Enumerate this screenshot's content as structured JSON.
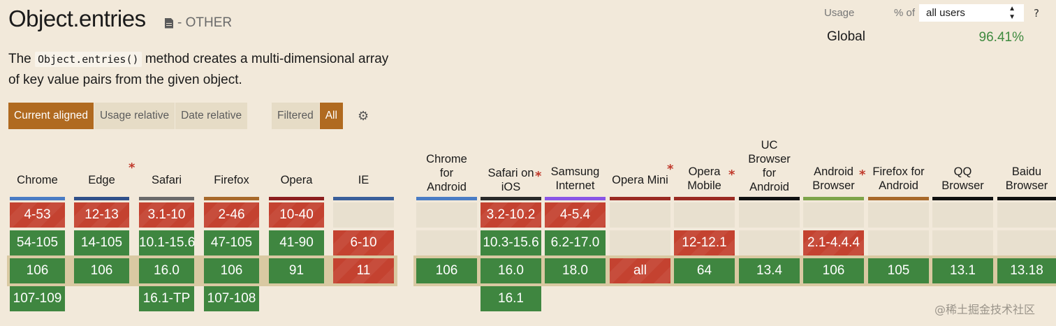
{
  "feature": {
    "title": "Object.entries",
    "category_icon": "document-icon",
    "category": "- OTHER",
    "description_prefix": "The",
    "description_code": "Object.entries()",
    "description_suffix": "method creates a multi-dimensional array of key value pairs from the given object."
  },
  "view_buttons": [
    {
      "label": "Current aligned",
      "active": true
    },
    {
      "label": "Usage relative",
      "active": false
    },
    {
      "label": "Date relative",
      "active": false
    }
  ],
  "filter_buttons": [
    {
      "label": "Filtered",
      "active": false
    },
    {
      "label": "All",
      "active": true
    }
  ],
  "settings_icon": "gear-icon",
  "usage": {
    "label": "Usage",
    "pct_of": "% of",
    "select_value": "all users",
    "help": "?",
    "global_label": "Global",
    "global_value": "96.41%"
  },
  "colors": {
    "supported": "#3f8640",
    "unsupported": "#c44230",
    "accent": "#b06a20",
    "usage_green": "#3f8a3f"
  },
  "browsers": [
    {
      "name": "Chrome",
      "star": false,
      "bar": "#4a7cc4",
      "cells": [
        {
          "v": "4-53",
          "s": "n"
        },
        {
          "v": "54-105",
          "s": "y"
        },
        {
          "v": "106",
          "s": "y"
        },
        {
          "v": "107-109",
          "s": "y"
        }
      ]
    },
    {
      "name": "Edge",
      "star": true,
      "bar": "#30508a",
      "cells": [
        {
          "v": "12-13",
          "s": "n"
        },
        {
          "v": "14-105",
          "s": "y"
        },
        {
          "v": "106",
          "s": "y"
        },
        {
          "v": "",
          "s": ""
        }
      ]
    },
    {
      "name": "Safari",
      "star": false,
      "bar": "#6a6a6a",
      "cells": [
        {
          "v": "3.1-10",
          "s": "n"
        },
        {
          "v": "10.1-15.6",
          "s": "y"
        },
        {
          "v": "16.0",
          "s": "y"
        },
        {
          "v": "16.1-TP",
          "s": "y"
        }
      ]
    },
    {
      "name": "Firefox",
      "star": false,
      "bar": "#a8692a",
      "cells": [
        {
          "v": "2-46",
          "s": "n"
        },
        {
          "v": "47-105",
          "s": "y"
        },
        {
          "v": "106",
          "s": "y"
        },
        {
          "v": "107-108",
          "s": "y"
        }
      ]
    },
    {
      "name": "Opera",
      "star": false,
      "bar": "#8c1f1f",
      "cells": [
        {
          "v": "10-40",
          "s": "n"
        },
        {
          "v": "41-90",
          "s": "y"
        },
        {
          "v": "91",
          "s": "y"
        },
        {
          "v": "",
          "s": ""
        }
      ]
    },
    {
      "name": "IE",
      "star": false,
      "bar": "#3a5f9a",
      "cells": [
        {
          "v": "",
          "s": "e"
        },
        {
          "v": "6-10",
          "s": "n"
        },
        {
          "v": "11",
          "s": "n"
        },
        {
          "v": "",
          "s": ""
        }
      ]
    },
    {
      "name": "Chrome for Android",
      "star": false,
      "bar": "#4a7cc4",
      "cells": [
        {
          "v": "",
          "s": "e"
        },
        {
          "v": "",
          "s": "e"
        },
        {
          "v": "106",
          "s": "y"
        },
        {
          "v": "",
          "s": ""
        }
      ]
    },
    {
      "name": "Safari on iOS",
      "star": true,
      "bar": "#2a2a2a",
      "cells": [
        {
          "v": "3.2-10.2",
          "s": "n"
        },
        {
          "v": "10.3-15.6",
          "s": "y"
        },
        {
          "v": "16.0",
          "s": "y"
        },
        {
          "v": "16.1",
          "s": "y"
        }
      ]
    },
    {
      "name": "Samsung Internet",
      "star": false,
      "bar": "#8a55e6",
      "cells": [
        {
          "v": "4-5.4",
          "s": "n"
        },
        {
          "v": "6.2-17.0",
          "s": "y"
        },
        {
          "v": "18.0",
          "s": "y"
        },
        {
          "v": "",
          "s": ""
        }
      ]
    },
    {
      "name": "Opera Mini",
      "star": true,
      "bar": "#9a2a22",
      "cells": [
        {
          "v": "",
          "s": "e"
        },
        {
          "v": "",
          "s": "e"
        },
        {
          "v": "all",
          "s": "n"
        },
        {
          "v": "",
          "s": ""
        }
      ]
    },
    {
      "name": "Opera Mobile",
      "star": true,
      "bar": "#9a2a22",
      "cells": [
        {
          "v": "",
          "s": "e"
        },
        {
          "v": "12-12.1",
          "s": "n"
        },
        {
          "v": "64",
          "s": "y"
        },
        {
          "v": "",
          "s": ""
        }
      ]
    },
    {
      "name": "UC Browser for Android",
      "star": false,
      "bar": "#111111",
      "cells": [
        {
          "v": "",
          "s": "e"
        },
        {
          "v": "",
          "s": "e"
        },
        {
          "v": "13.4",
          "s": "y"
        },
        {
          "v": "",
          "s": ""
        }
      ]
    },
    {
      "name": "Android Browser",
      "star": true,
      "bar": "#7ea44a",
      "cells": [
        {
          "v": "",
          "s": "e"
        },
        {
          "v": "2.1-4.4.4",
          "s": "n"
        },
        {
          "v": "106",
          "s": "y"
        },
        {
          "v": "",
          "s": ""
        }
      ]
    },
    {
      "name": "Firefox for Android",
      "star": false,
      "bar": "#a8692a",
      "cells": [
        {
          "v": "",
          "s": "e"
        },
        {
          "v": "",
          "s": "e"
        },
        {
          "v": "105",
          "s": "y"
        },
        {
          "v": "",
          "s": ""
        }
      ]
    },
    {
      "name": "QQ Browser",
      "star": false,
      "bar": "#111111",
      "cells": [
        {
          "v": "",
          "s": "e"
        },
        {
          "v": "",
          "s": "e"
        },
        {
          "v": "13.1",
          "s": "y"
        },
        {
          "v": "",
          "s": ""
        }
      ]
    },
    {
      "name": "Baidu Browser",
      "star": false,
      "bar": "#111111",
      "cells": [
        {
          "v": "",
          "s": "e"
        },
        {
          "v": "",
          "s": "e"
        },
        {
          "v": "13.18",
          "s": "y"
        },
        {
          "v": "",
          "s": ""
        }
      ]
    }
  ],
  "watermark": "@稀土掘金技术社区"
}
